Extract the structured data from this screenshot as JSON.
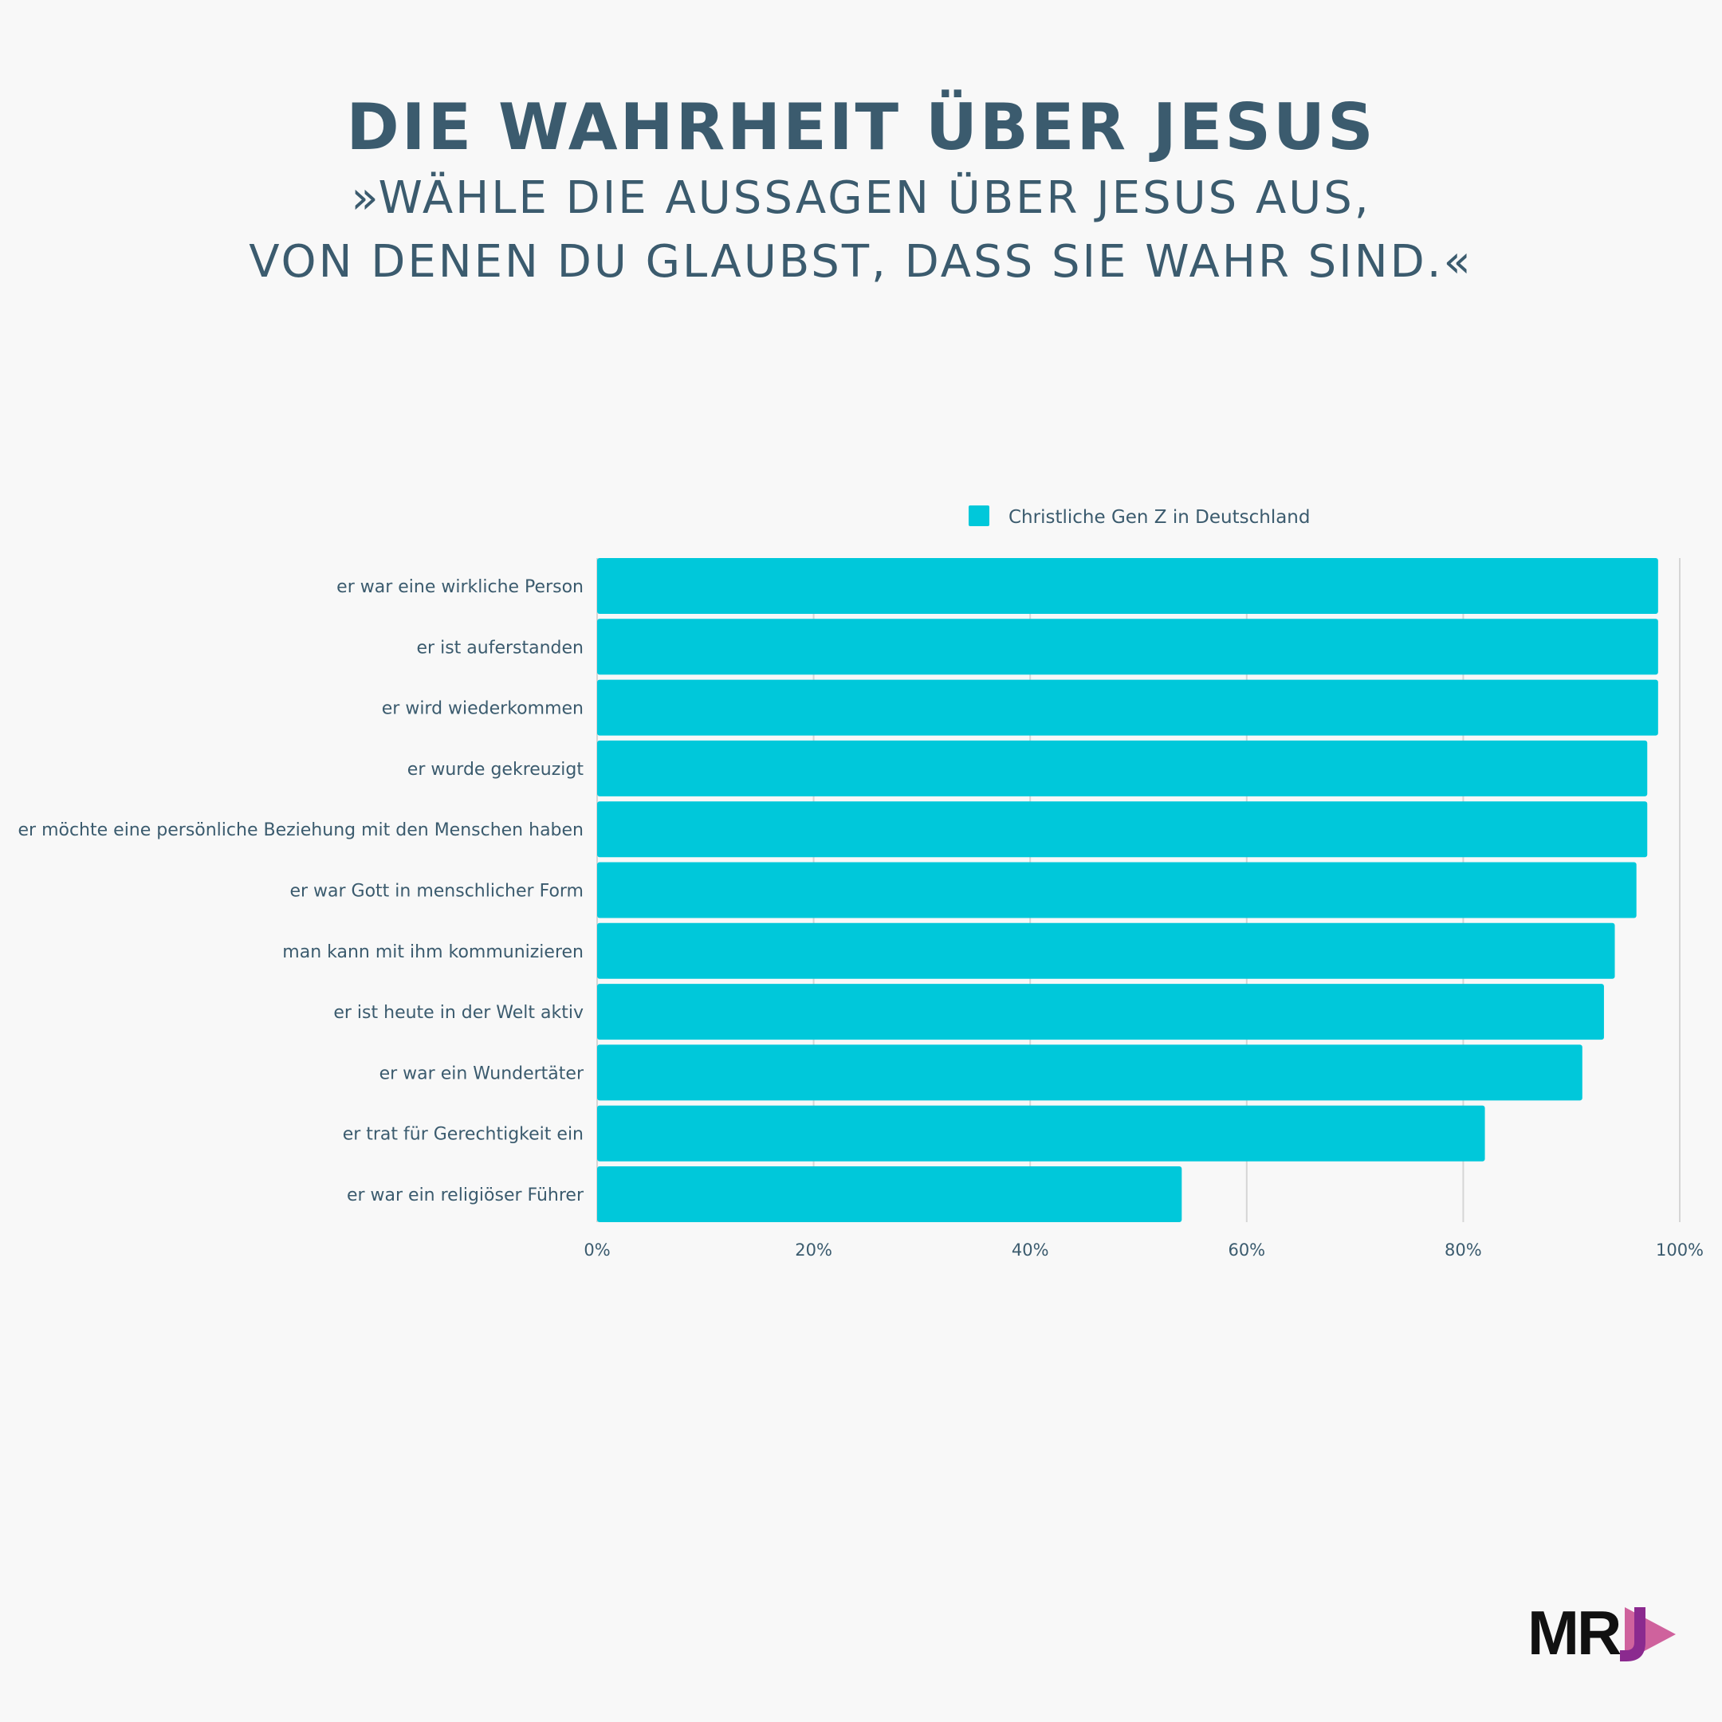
{
  "header": {
    "title": "DIE WAHRHEIT ÜBER JESUS",
    "subtitle_line1": "»WÄHLE DIE AUSSAGEN ÜBER JESUS AUS,",
    "subtitle_line2": "VON DENEN DU GLAUBST, DASS SIE WAHR SIND.«"
  },
  "colors": {
    "bar": "#00c8da",
    "text": "#3b5b6e",
    "grid": "#d6d6d6",
    "background": "#f8f8f8",
    "logo_accent": "#c2307f"
  },
  "chart_data": {
    "type": "bar",
    "orientation": "horizontal",
    "categories": [
      "er war eine wirkliche Person",
      "er ist auferstanden",
      "er wird wiederkommen",
      "er wurde gekreuzigt",
      "er möchte eine persönliche Beziehung mit den Menschen haben",
      "er war Gott in menschlicher Form",
      "man kann mit ihm kommunizieren",
      "er ist heute in der Welt aktiv",
      "er war ein Wundertäter",
      "er trat für Gerechtigkeit ein",
      "er war ein religiöser Führer"
    ],
    "series": [
      {
        "name": "Christliche Gen Z in Deutschland",
        "values": [
          98,
          98,
          98,
          97,
          97,
          96,
          94,
          93,
          91,
          82,
          54
        ]
      }
    ],
    "xlim": [
      0,
      100
    ],
    "xticks": [
      "0%",
      "20%",
      "40%",
      "60%",
      "80%",
      "100%"
    ],
    "legend_position": "top-center",
    "grid": true
  },
  "logo": {
    "text": "MR"
  }
}
